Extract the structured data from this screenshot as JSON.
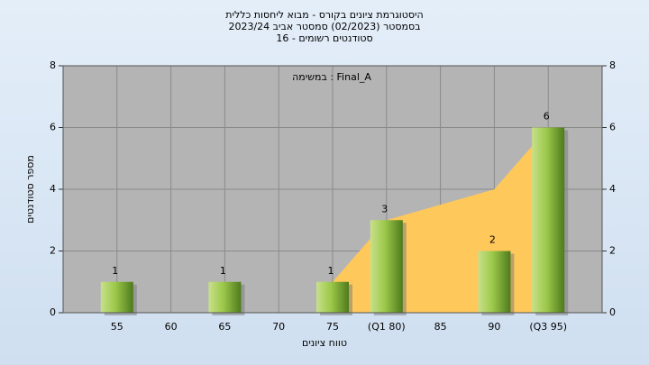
{
  "chart_data": {
    "type": "bar",
    "title": "היסטוגרמת ציונים בקורס - מבוא ליחסות כללית",
    "subtitle": "בסמסטר  (02/2023)  סמסטר אביב 2023/24",
    "subtitle2": "סטודנטים רשומים - 16",
    "annotation": "במשימה : Final_A",
    "x_label": "טווח ציונים",
    "y_label": "מספר סטודנטים",
    "categories": [
      "55",
      "60",
      "65",
      "70",
      "75",
      "(Q1 80)",
      "85",
      "90",
      "(Q3 95)"
    ],
    "series": [
      {
        "type": "area",
        "color": "#ffc85a",
        "values": [
          null,
          null,
          null,
          null,
          1,
          3,
          3.5,
          4,
          6
        ]
      },
      {
        "type": "bar",
        "color": "#8dbb3c",
        "values": [
          1,
          0,
          1,
          0,
          1,
          3,
          0,
          2,
          6
        ]
      }
    ],
    "ylim": [
      0,
      8
    ],
    "yticks": [
      0,
      2,
      4,
      6,
      8
    ],
    "grid": true
  }
}
